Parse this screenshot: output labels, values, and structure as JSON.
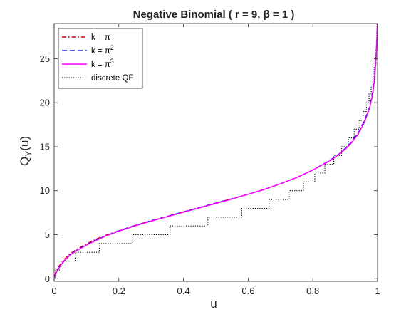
{
  "chart_data": {
    "type": "line",
    "title": "Negative Binomial ( r = 9, β = 1 )",
    "xlabel": "u",
    "ylabel": "Q",
    "ylabel_sub": "Y",
    "ylabel_tail": "(u)",
    "xlim": [
      0,
      1
    ],
    "ylim": [
      -0.3,
      29
    ],
    "xticks": [
      0,
      0.2,
      0.4,
      0.6,
      0.8,
      1
    ],
    "xtick_labels": [
      "0",
      "0.2",
      "0.4",
      "0.6",
      "0.8",
      "1"
    ],
    "yticks": [
      0,
      5,
      10,
      15,
      20,
      25
    ],
    "ytick_labels": [
      "0",
      "5",
      "10",
      "15",
      "20",
      "25"
    ],
    "grid": false,
    "legend_position": "top-left",
    "series": [
      {
        "name": "k = π",
        "label_base": "k = π",
        "label_sup": "",
        "color": "#cc0000",
        "dash": "dashdot",
        "x": [
          0.001,
          0.005,
          0.01,
          0.02,
          0.03,
          0.05,
          0.07,
          0.1,
          0.13,
          0.16,
          0.2,
          0.25,
          0.3,
          0.35,
          0.4,
          0.45,
          0.5,
          0.55,
          0.6,
          0.65,
          0.7,
          0.75,
          0.8,
          0.85,
          0.88,
          0.9,
          0.92,
          0.94,
          0.96,
          0.975,
          0.985,
          0.99,
          0.995,
          0.998
        ],
        "y": [
          0.35,
          0.75,
          1.1,
          1.7,
          2.15,
          2.85,
          3.35,
          3.95,
          4.5,
          4.95,
          5.45,
          6.05,
          6.6,
          7.1,
          7.6,
          8.1,
          8.6,
          9.1,
          9.6,
          10.15,
          10.8,
          11.5,
          12.35,
          13.35,
          14.1,
          14.75,
          15.5,
          16.5,
          17.9,
          19.4,
          21.0,
          22.4,
          24.5,
          26.8
        ]
      },
      {
        "name": "k = π²",
        "label_base": "k = π",
        "label_sup": "2",
        "color": "#1a1aff",
        "dash": "dash",
        "x": [
          0.001,
          0.005,
          0.01,
          0.02,
          0.03,
          0.05,
          0.07,
          0.1,
          0.13,
          0.16,
          0.2,
          0.25,
          0.3,
          0.35,
          0.4,
          0.45,
          0.5,
          0.55,
          0.6,
          0.65,
          0.7,
          0.75,
          0.8,
          0.85,
          0.88,
          0.9,
          0.92,
          0.94,
          0.96,
          0.975,
          0.985,
          0.99,
          0.995,
          0.998,
          0.9995
        ],
        "y": [
          0.2,
          0.6,
          0.95,
          1.55,
          2.0,
          2.75,
          3.25,
          3.85,
          4.4,
          4.9,
          5.45,
          6.05,
          6.6,
          7.1,
          7.6,
          8.1,
          8.6,
          9.1,
          9.6,
          10.15,
          10.8,
          11.5,
          12.35,
          13.4,
          14.15,
          14.8,
          15.55,
          16.55,
          18.0,
          19.5,
          21.2,
          22.7,
          24.9,
          27.4,
          29.0
        ]
      },
      {
        "name": "k = π³",
        "label_base": "k = π",
        "label_sup": "3",
        "color": "#ff00ff",
        "dash": "solid",
        "x": [
          0.001,
          0.005,
          0.01,
          0.02,
          0.03,
          0.05,
          0.07,
          0.1,
          0.13,
          0.16,
          0.2,
          0.25,
          0.3,
          0.35,
          0.4,
          0.45,
          0.5,
          0.55,
          0.6,
          0.65,
          0.7,
          0.75,
          0.8,
          0.85,
          0.88,
          0.9,
          0.92,
          0.94,
          0.96,
          0.975,
          0.985,
          0.99,
          0.995,
          0.998,
          0.9995
        ],
        "y": [
          0.15,
          0.55,
          0.9,
          1.5,
          1.95,
          2.7,
          3.2,
          3.8,
          4.35,
          4.85,
          5.4,
          6.0,
          6.55,
          7.05,
          7.55,
          8.05,
          8.55,
          9.05,
          9.6,
          10.15,
          10.8,
          11.5,
          12.35,
          13.35,
          14.1,
          14.7,
          15.45,
          16.4,
          17.8,
          19.3,
          20.9,
          22.4,
          24.6,
          27.0,
          29.0
        ]
      },
      {
        "name": "discrete QF",
        "label_base": "discrete QF",
        "label_sup": "",
        "color": "#000000",
        "dash": "dot",
        "step": true,
        "x": [
          0,
          0.0039,
          0.0209,
          0.0647,
          0.1396,
          0.2414,
          0.3583,
          0.4754,
          0.5801,
          0.6644,
          0.7272,
          0.7708,
          0.8059,
          0.837,
          0.8647,
          0.889,
          0.91,
          0.928,
          0.9431,
          0.9555,
          0.9656,
          0.9738,
          0.9804,
          0.9855,
          0.9894,
          0.9923,
          0.9945,
          0.9962,
          0.9974,
          0.9983,
          1.0
        ],
        "y": [
          0,
          1,
          2,
          3,
          4,
          5,
          6,
          7,
          8,
          9,
          10,
          11,
          12,
          13,
          14,
          15,
          16,
          17,
          18,
          19,
          20,
          21,
          22,
          23,
          24,
          25,
          26,
          27,
          28,
          29,
          29
        ]
      }
    ]
  }
}
